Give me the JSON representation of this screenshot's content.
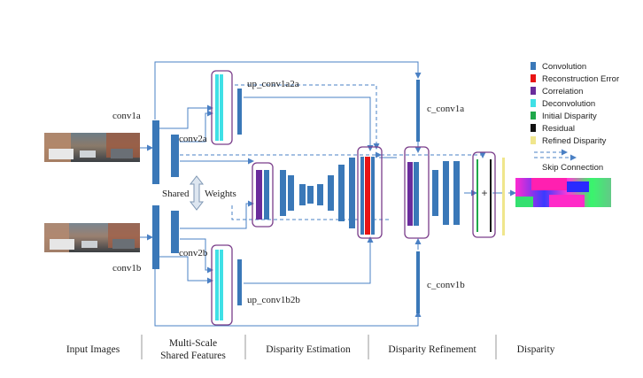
{
  "colors": {
    "convolution": "#3a78b8",
    "reconstruction_error": "#e81414",
    "correlation": "#6a2c9c",
    "deconvolution": "#3fe0e6",
    "initial_disparity": "#1fa84a",
    "residual": "#111111",
    "refined_disparity": "#f0e68c",
    "highlight_box": "#7a3d8a",
    "arrow": "#4a80c4"
  },
  "labels": {
    "conv1a": "conv1a",
    "conv1b": "conv1b",
    "conv2a": "conv2a",
    "conv2b": "conv2b",
    "up_conv1a2a": "up_conv1a2a",
    "up_conv1b2b": "up_conv1b2b",
    "c_conv1a": "c_conv1a",
    "c_conv1b": "c_conv1b",
    "shared": "Shared",
    "weights": "Weights",
    "plus": "+"
  },
  "legend": {
    "items": [
      {
        "label": "Convolution",
        "icon": "bar-swatch",
        "color_key": "convolution"
      },
      {
        "label": "Reconstruction Error",
        "icon": "bar-swatch",
        "color_key": "reconstruction_error"
      },
      {
        "label": "Correlation",
        "icon": "bar-swatch",
        "color_key": "correlation"
      },
      {
        "label": "Deconvolution",
        "icon": "bar-swatch",
        "color_key": "deconvolution"
      },
      {
        "label": "Initial Disparity",
        "icon": "bar-swatch",
        "color_key": "initial_disparity"
      },
      {
        "label": "Residual",
        "icon": "bar-swatch",
        "color_key": "residual"
      },
      {
        "label": "Refined Disparity",
        "icon": "bar-swatch",
        "color_key": "refined_disparity"
      }
    ],
    "skip_label": "Skip Connection"
  },
  "stages": [
    "Input Images",
    "Multi-Scale Shared Features",
    "Disparity Estimation",
    "Disparity Refinement",
    "Disparity"
  ]
}
